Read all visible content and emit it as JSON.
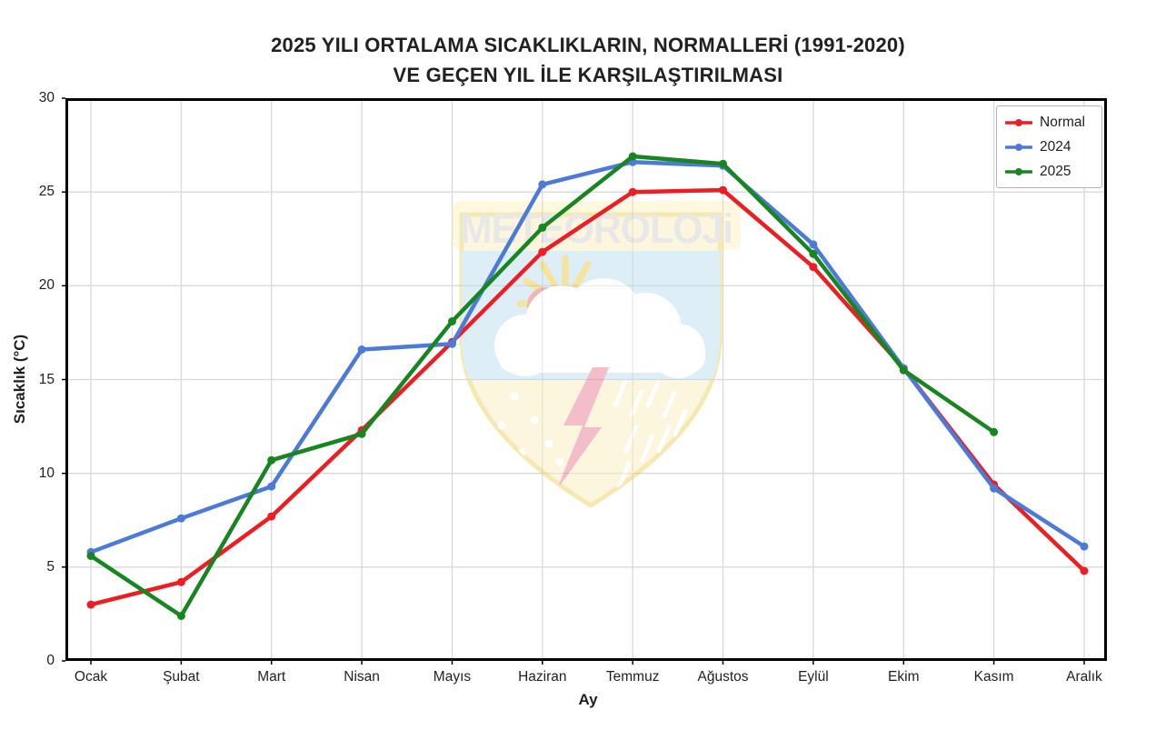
{
  "title": {
    "line1": "2025 YILI ORTALAMA SICAKLIKLARIN, NORMALLERİ (1991-2020)",
    "line2": "VE GEÇEN YIL İLE KARŞILAŞTIRILMASI"
  },
  "watermark": {
    "text": "METEOROLOJi"
  },
  "chart_data": {
    "type": "line",
    "title": "2025 YILI ORTALAMA SICAKLIKLARIN, NORMALLERİ (1991-2020) VE GEÇEN YIL İLE KARŞILAŞTIRILMASI",
    "xlabel": "Ay",
    "ylabel": "Sıcaklık (°C)",
    "ylim": [
      0,
      30
    ],
    "yticks": [
      0,
      5,
      10,
      15,
      20,
      25,
      30
    ],
    "grid": true,
    "legend_position": "upper right",
    "categories": [
      "Ocak",
      "Şubat",
      "Mart",
      "Nisan",
      "Mayıs",
      "Haziran",
      "Temmuz",
      "Ağustos",
      "Eylül",
      "Ekim",
      "Kasım",
      "Aralık"
    ],
    "series": [
      {
        "name": "Normal",
        "color": "#eb1e23",
        "values": [
          3.0,
          4.2,
          7.7,
          12.3,
          17.0,
          21.8,
          25.0,
          25.1,
          21.0,
          15.6,
          9.4,
          4.8
        ]
      },
      {
        "name": "2024",
        "color": "#4d7ad7",
        "values": [
          5.8,
          7.6,
          9.3,
          16.6,
          16.9,
          25.4,
          26.6,
          26.4,
          22.2,
          15.6,
          9.2,
          6.1
        ]
      },
      {
        "name": "2025",
        "color": "#188620",
        "values": [
          5.6,
          2.4,
          10.7,
          12.1,
          18.1,
          23.1,
          26.9,
          26.5,
          21.7,
          15.5,
          12.2,
          null
        ]
      }
    ]
  }
}
